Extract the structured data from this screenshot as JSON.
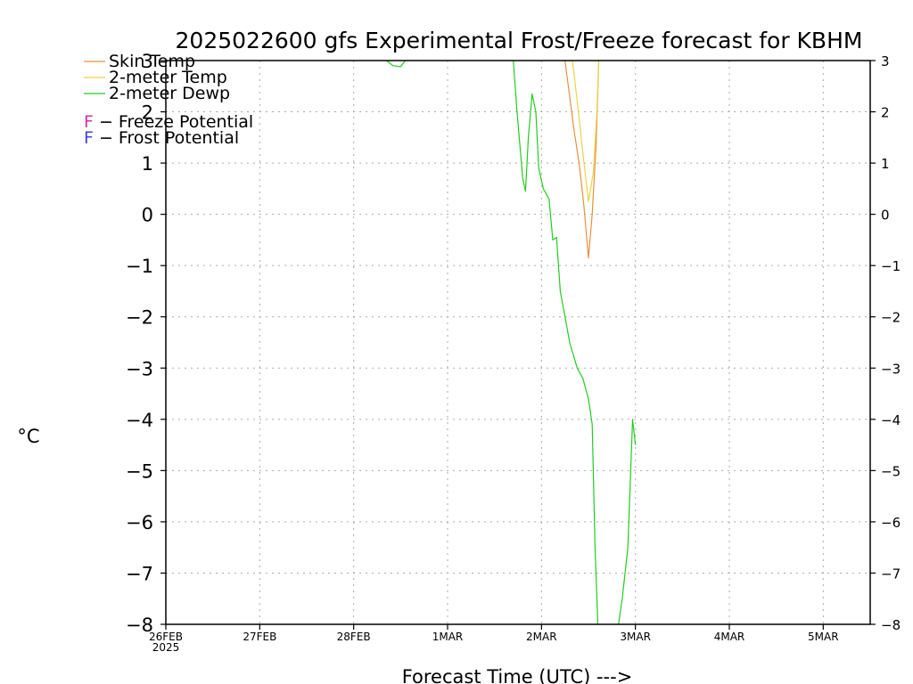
{
  "chart_data": {
    "type": "line",
    "title": "2025022600 gfs Experimental Frost/Freeze forecast for KBHM",
    "xlabel": "Forecast Time (UTC) --->",
    "ylabel": "°C",
    "ylim": [
      -8,
      3
    ],
    "xlim": [
      0,
      7.5
    ],
    "yticks": [
      3,
      2,
      1,
      0,
      -1,
      -2,
      -3,
      -4,
      -5,
      -6,
      -7,
      -8
    ],
    "yticks_labels": [
      "3",
      "2",
      "1",
      "0",
      "−1",
      "−2",
      "−3",
      "−4",
      "−5",
      "−6",
      "−7",
      "−8"
    ],
    "xticks": [
      {
        "x": 0,
        "label": "26FEB",
        "sublabel": "2025"
      },
      {
        "x": 1,
        "label": "27FEB",
        "sublabel": ""
      },
      {
        "x": 2,
        "label": "28FEB",
        "sublabel": ""
      },
      {
        "x": 3,
        "label": "1MAR",
        "sublabel": ""
      },
      {
        "x": 4,
        "label": "2MAR",
        "sublabel": ""
      },
      {
        "x": 5,
        "label": "3MAR",
        "sublabel": ""
      },
      {
        "x": 6,
        "label": "4MAR",
        "sublabel": ""
      },
      {
        "x": 7,
        "label": "5MAR",
        "sublabel": ""
      }
    ],
    "grid": true,
    "legend_placement": "top-left",
    "legend": {
      "series_entries": [
        "Skin Temp",
        "2-meter Temp",
        "2-meter Dewp"
      ],
      "freeze_letter": "F",
      "freeze_text": " − Freeze Potential",
      "frost_letter": "F",
      "frost_text": " − Frost Potential"
    },
    "colors": {
      "skin": "#e8903a",
      "temp2m": "#ead24a",
      "dewp": "#22cc22",
      "freeze": "#cc33aa",
      "frost": "#4444dd",
      "grid": "#aaaaaa"
    },
    "series": [
      {
        "name": "Skin Temp",
        "color": "#e8903a",
        "points": [
          [
            4.25,
            3.0
          ],
          [
            4.3,
            2.3
          ],
          [
            4.35,
            1.6
          ],
          [
            4.4,
            1.0
          ],
          [
            4.45,
            0.2
          ],
          [
            4.5,
            -0.85
          ],
          [
            4.54,
            0.0
          ],
          [
            4.58,
            1.3
          ],
          [
            4.6,
            2.4
          ],
          [
            4.61,
            3.0
          ]
        ]
      },
      {
        "name": "2-meter Temp",
        "color": "#ead24a",
        "points": [
          [
            4.33,
            3.0
          ],
          [
            4.38,
            2.2
          ],
          [
            4.44,
            1.2
          ],
          [
            4.5,
            0.25
          ],
          [
            4.55,
            0.8
          ],
          [
            4.59,
            2.0
          ],
          [
            4.61,
            3.0
          ]
        ]
      },
      {
        "name": "2-meter Dewp",
        "color": "#22cc22",
        "points": [
          [
            2.35,
            3.0
          ],
          [
            2.42,
            2.9
          ],
          [
            2.5,
            2.88
          ],
          [
            2.55,
            3.0
          ],
          null,
          [
            3.7,
            3.0
          ],
          [
            3.74,
            2.0
          ],
          [
            3.8,
            0.7
          ],
          [
            3.83,
            0.45
          ],
          [
            3.86,
            1.5
          ],
          [
            3.9,
            2.35
          ],
          [
            3.94,
            2.0
          ],
          [
            3.97,
            0.9
          ],
          [
            4.02,
            0.5
          ],
          [
            4.08,
            0.3
          ],
          [
            4.12,
            -0.5
          ],
          [
            4.16,
            -0.45
          ],
          [
            4.2,
            -1.5
          ],
          [
            4.25,
            -2.0
          ],
          [
            4.3,
            -2.5
          ],
          [
            4.38,
            -3.0
          ],
          [
            4.44,
            -3.2
          ],
          [
            4.5,
            -3.6
          ],
          [
            4.54,
            -4.1
          ],
          [
            4.57,
            -6.5
          ],
          [
            4.6,
            -8.0
          ],
          null,
          [
            4.82,
            -8.0
          ],
          [
            4.86,
            -7.5
          ],
          [
            4.92,
            -6.5
          ],
          [
            4.97,
            -4.0
          ],
          [
            5.0,
            -4.5
          ]
        ]
      }
    ]
  }
}
